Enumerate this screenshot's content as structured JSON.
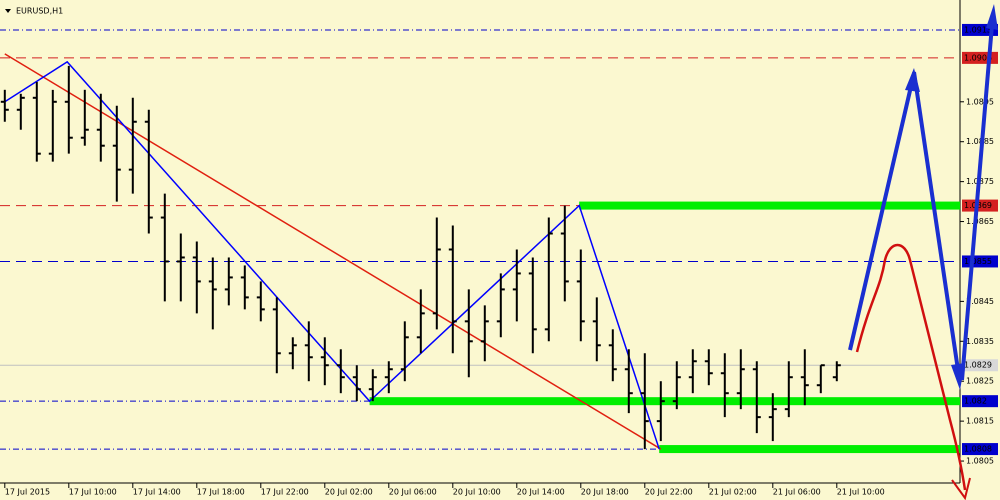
{
  "chart_data": {
    "type": "ohlc",
    "title": "EURUSD,H1",
    "xlim": [
      -0.3,
      59.7
    ],
    "ylim": [
      1.07995,
      1.09205
    ],
    "yticks": [
      1.0805,
      1.0815,
      1.0825,
      1.0835,
      1.0845,
      1.0865,
      1.0875,
      1.0885,
      1.0895
    ],
    "xticks": [
      0,
      4,
      8,
      12,
      16,
      20,
      24,
      28,
      32,
      36,
      40,
      44,
      48,
      52
    ],
    "xtick_labels": [
      "17 Jul 2015",
      "17 Jul 10:00",
      "17 Jul 14:00",
      "17 Jul 18:00",
      "17 Jul 22:00",
      "20 Jul 02:00",
      "20 Jul 06:00",
      "20 Jul 10:00",
      "20 Jul 14:00",
      "20 Jul 18:00",
      "20 Jul 22:00",
      "21 Jul 02:00",
      "21 Jul 06:00",
      "21 Jul 10:00"
    ],
    "color": "#000000",
    "open": [
      1.0895,
      1.0893,
      1.0896,
      1.0882,
      1.0895,
      1.0886,
      1.0888,
      1.0884,
      1.0878,
      1.089,
      1.0866,
      1.0855,
      1.0856,
      1.085,
      1.0848,
      1.0851,
      1.0846,
      1.0843,
      1.0832,
      1.0834,
      1.0831,
      1.0829,
      1.0826,
      1.0823,
      1.0826,
      1.0828,
      1.0836,
      1.0842,
      1.0858,
      1.084,
      1.0835,
      1.084,
      1.0848,
      1.0852,
      1.0838,
      1.0862,
      1.085,
      1.084,
      1.0834,
      1.0828,
      1.0822,
      1.0815,
      1.082,
      1.0826,
      1.083,
      1.0827,
      1.0822,
      1.0828,
      1.0816,
      1.0818,
      1.0826,
      1.0824,
      1.0826
    ],
    "high": [
      1.0898,
      1.0897,
      1.09,
      1.0898,
      1.0904,
      1.0898,
      1.0897,
      1.0894,
      1.0896,
      1.0893,
      1.0872,
      1.0862,
      1.086,
      1.0856,
      1.0856,
      1.0854,
      1.085,
      1.0846,
      1.0836,
      1.084,
      1.0836,
      1.0833,
      1.0829,
      1.0828,
      1.083,
      1.084,
      1.0848,
      1.0866,
      1.0864,
      1.0848,
      1.0844,
      1.0852,
      1.0858,
      1.0856,
      1.0866,
      1.0869,
      1.0858,
      1.0846,
      1.0838,
      1.0833,
      1.0832,
      1.0825,
      1.083,
      1.0833,
      1.0833,
      1.0832,
      1.0833,
      1.083,
      1.0822,
      1.083,
      1.0833,
      1.0829,
      1.083
    ],
    "low": [
      1.089,
      1.0888,
      1.088,
      1.088,
      1.0882,
      1.0884,
      1.088,
      1.087,
      1.0872,
      1.0862,
      1.0845,
      1.0845,
      1.0842,
      1.0838,
      1.0844,
      1.0843,
      1.084,
      1.0827,
      1.0828,
      1.0825,
      1.0824,
      1.0822,
      1.082,
      1.082,
      1.0822,
      1.0825,
      1.0832,
      1.0838,
      1.0832,
      1.0826,
      1.083,
      1.0836,
      1.084,
      1.0832,
      1.0835,
      1.0845,
      1.0835,
      1.083,
      1.0825,
      1.0817,
      1.0808,
      1.081,
      1.0818,
      1.0822,
      1.0824,
      1.0816,
      1.0818,
      1.0812,
      1.081,
      1.0816,
      1.0819,
      1.0822,
      1.0825
    ],
    "close": [
      1.0893,
      1.0896,
      1.0882,
      1.0895,
      1.0886,
      1.0888,
      1.0884,
      1.0878,
      1.089,
      1.0866,
      1.0855,
      1.0856,
      1.085,
      1.0848,
      1.0851,
      1.0846,
      1.0843,
      1.0832,
      1.0834,
      1.0831,
      1.0829,
      1.0826,
      1.0823,
      1.0826,
      1.0828,
      1.0836,
      1.0842,
      1.0858,
      1.084,
      1.0835,
      1.084,
      1.0848,
      1.0852,
      1.0838,
      1.0862,
      1.085,
      1.084,
      1.0834,
      1.0828,
      1.0822,
      1.0815,
      1.082,
      1.0826,
      1.083,
      1.0827,
      1.0822,
      1.0828,
      1.0816,
      1.0818,
      1.0826,
      1.0824,
      1.0829,
      1.0829
    ],
    "levels": [
      {
        "value": 1.0913,
        "color": "#0000cd",
        "style": "dashdot"
      },
      {
        "value": 1.0906,
        "color": "#d42020",
        "style": "dash"
      },
      {
        "value": 1.0869,
        "color": "#d42020",
        "style": "dash"
      },
      {
        "value": 1.0855,
        "color": "#0000cd",
        "style": "dash"
      },
      {
        "value": 1.0829,
        "color": "#c0c0c0",
        "style": "solid"
      },
      {
        "value": 1.082,
        "color": "#0000cd",
        "style": "dashdot"
      },
      {
        "value": 1.0808,
        "color": "#0000cd",
        "style": "dashdot"
      }
    ],
    "trendlines": [
      {
        "color": "#e02010",
        "x": [
          0,
          41
        ],
        "y": [
          1.0907,
          1.0808
        ]
      },
      {
        "color": "#0000ff",
        "x": [
          0,
          3.9,
          22.8,
          35.9,
          40.9
        ],
        "y": [
          1.0895,
          1.0905,
          1.082,
          1.0869,
          1.0808
        ]
      }
    ],
    "zones": [
      {
        "color": "#00ee00",
        "x": 22.8,
        "value": 1.082
      },
      {
        "color": "#00ee00",
        "x": 35.9,
        "value": 1.0869
      },
      {
        "color": "#00ee00",
        "x": 40.9,
        "value": 1.0808
      }
    ]
  }
}
